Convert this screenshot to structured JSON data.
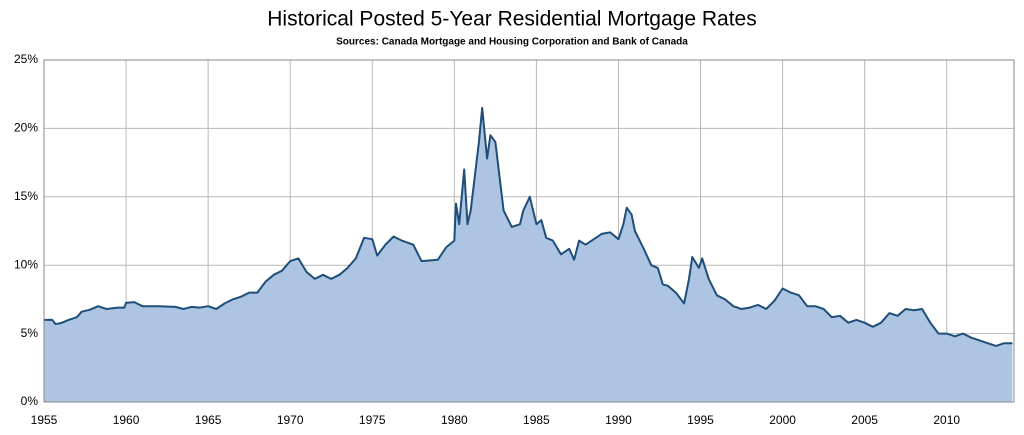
{
  "chart_data": {
    "type": "area",
    "title": "Historical Posted 5-Year Residential Mortgage Rates",
    "subtitle": "Sources: Canada Mortgage and Housing Corporation and Bank of Canada",
    "color": "#adc5e3",
    "line_color": "#1f4e79",
    "grid": true,
    "x": [
      1955,
      1955.5,
      1955.7,
      1956,
      1956.5,
      1957,
      1957.3,
      1957.8,
      1958.3,
      1958.8,
      1959.5,
      1959.9,
      1960,
      1960.5,
      1961,
      1962,
      1963,
      1963.5,
      1964,
      1964.5,
      1965,
      1965.5,
      1966,
      1966.5,
      1967,
      1967.5,
      1968,
      1968.5,
      1969,
      1969.5,
      1970,
      1970.5,
      1971,
      1971.5,
      1972,
      1972.5,
      1973,
      1973.5,
      1974,
      1974.5,
      1975,
      1975.3,
      1975.8,
      1976.3,
      1976.8,
      1977.5,
      1978,
      1979,
      1979.5,
      1980,
      1980.1,
      1980.3,
      1980.6,
      1980.8,
      1981,
      1981.2,
      1981.5,
      1981.7,
      1982,
      1982.2,
      1982.5,
      1982.8,
      1983,
      1983.5,
      1984,
      1984.2,
      1984.6,
      1985,
      1985.3,
      1985.6,
      1986,
      1986.5,
      1987,
      1987.3,
      1987.6,
      1988,
      1988.5,
      1989,
      1989.5,
      1990,
      1990.3,
      1990.5,
      1990.8,
      1991,
      1991.5,
      1992,
      1992.4,
      1992.7,
      1993,
      1993.5,
      1994,
      1994.3,
      1994.5,
      1994.9,
      1995.1,
      1995.5,
      1996,
      1996.5,
      1997,
      1997.5,
      1998,
      1998.5,
      1999,
      1999.5,
      2000,
      2000.5,
      2001,
      2001.5,
      2002,
      2002.5,
      2003,
      2003.5,
      2004,
      2004.5,
      2005,
      2005.5,
      2006,
      2006.5,
      2007,
      2007.5,
      2008,
      2008.5,
      2009,
      2009.5,
      2010,
      2010.5,
      2011,
      2011.5,
      2012,
      2012.5,
      2013,
      2013.5,
      2014
    ],
    "values": [
      6.0,
      6.0,
      5.7,
      5.75,
      6.0,
      6.2,
      6.6,
      6.75,
      7.0,
      6.8,
      6.9,
      6.9,
      7.25,
      7.3,
      7.0,
      7.0,
      6.95,
      6.8,
      6.95,
      6.9,
      7.0,
      6.8,
      7.2,
      7.5,
      7.7,
      8.0,
      8.0,
      8.8,
      9.3,
      9.6,
      10.3,
      10.5,
      9.5,
      9.0,
      9.3,
      9.0,
      9.3,
      9.8,
      10.5,
      12.0,
      11.9,
      10.7,
      11.5,
      12.1,
      11.8,
      11.5,
      10.3,
      10.4,
      11.3,
      11.8,
      14.5,
      13.0,
      17.0,
      13.0,
      14.0,
      16.0,
      19.0,
      21.5,
      17.8,
      19.5,
      19.0,
      16.0,
      14.0,
      12.8,
      13.0,
      14.0,
      15.0,
      13.0,
      13.3,
      12.0,
      11.8,
      10.8,
      11.2,
      10.4,
      11.8,
      11.5,
      11.9,
      12.3,
      12.4,
      11.9,
      13.0,
      14.2,
      13.7,
      12.5,
      11.3,
      10.0,
      9.8,
      8.6,
      8.5,
      8.0,
      7.2,
      9.0,
      10.6,
      9.8,
      10.5,
      9.0,
      7.8,
      7.5,
      7.0,
      6.8,
      6.9,
      7.1,
      6.8,
      7.4,
      8.3,
      8.0,
      7.8,
      7.0,
      7.0,
      6.8,
      6.2,
      6.3,
      5.8,
      6.0,
      5.8,
      5.5,
      5.8,
      6.5,
      6.3,
      6.8,
      6.7,
      6.8,
      5.8,
      5.0,
      5.0,
      4.8,
      5.0,
      4.7,
      4.5,
      4.3,
      4.1,
      4.3,
      4.3
    ],
    "xlim": [
      1955,
      2014.1
    ],
    "xticks": [
      1955,
      1960,
      1965,
      1970,
      1975,
      1980,
      1985,
      1990,
      1995,
      2000,
      2005,
      2010
    ],
    "ylim": [
      0,
      25
    ],
    "yticks": [
      {
        "value": 0,
        "label": "0%"
      },
      {
        "value": 5,
        "label": "5%"
      },
      {
        "value": 10,
        "label": "10%"
      },
      {
        "value": 15,
        "label": "15%"
      },
      {
        "value": 20,
        "label": "20%"
      },
      {
        "value": 25,
        "label": "25%"
      }
    ]
  }
}
